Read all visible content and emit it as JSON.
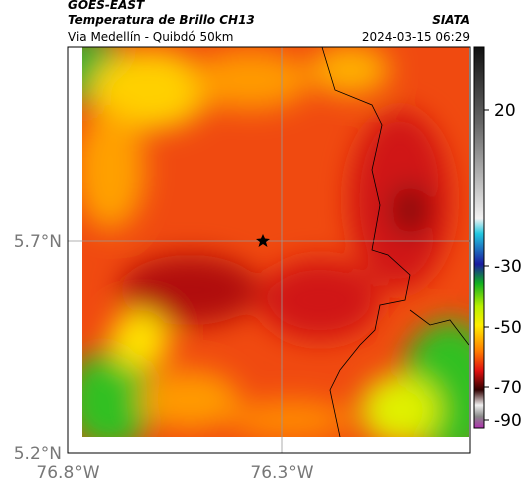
{
  "header": {
    "source": "GOES-EAST",
    "title": "Temperatura de Brillo CH13",
    "brand": "SIATA",
    "subtitle": "Via Medellín - Quibdó 50km",
    "timestamp": "2024-03-15 06:29"
  },
  "axes": {
    "latitude_labels": [
      "5.7°N",
      "5.2°N"
    ],
    "longitude_labels": [
      "76.8°W",
      "76.3°W"
    ]
  },
  "colorbar": {
    "labels": [
      "20",
      "-30",
      "-50",
      "-70",
      "-90"
    ]
  }
}
